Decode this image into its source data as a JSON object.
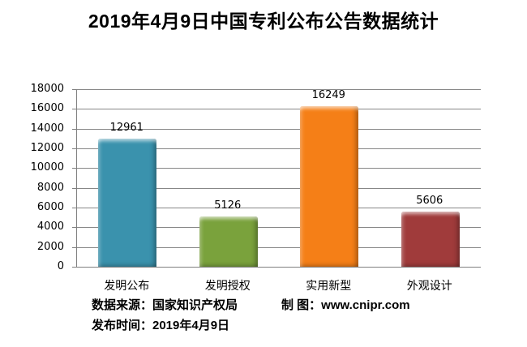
{
  "title": "2019年4月9日中国专利公布公告数据统计",
  "chart_data": {
    "type": "bar",
    "title": "2019年4月9日中国专利公布公告数据统计",
    "categories": [
      "发明公布",
      "发明授权",
      "实用新型",
      "外观设计"
    ],
    "values": [
      12961,
      5126,
      16249,
      5606
    ],
    "bar_colors": [
      "#3a92ad",
      "#7aa23c",
      "#f57f17",
      "#a03b3b"
    ],
    "xlabel": "",
    "ylabel": "",
    "ylim": [
      0,
      18000
    ],
    "ytick_step": 2000,
    "yticks": [
      0,
      2000,
      4000,
      6000,
      8000,
      10000,
      12000,
      14000,
      16000,
      18000
    ],
    "grid": "horizontal",
    "gridline_color": "#878787",
    "legend": "none",
    "data_labels": true
  },
  "footer": {
    "source": "数据来源：国家知识产权局",
    "credit": "制 图：www.cnipr.com",
    "published": "发布时间：2019年4月9日"
  }
}
